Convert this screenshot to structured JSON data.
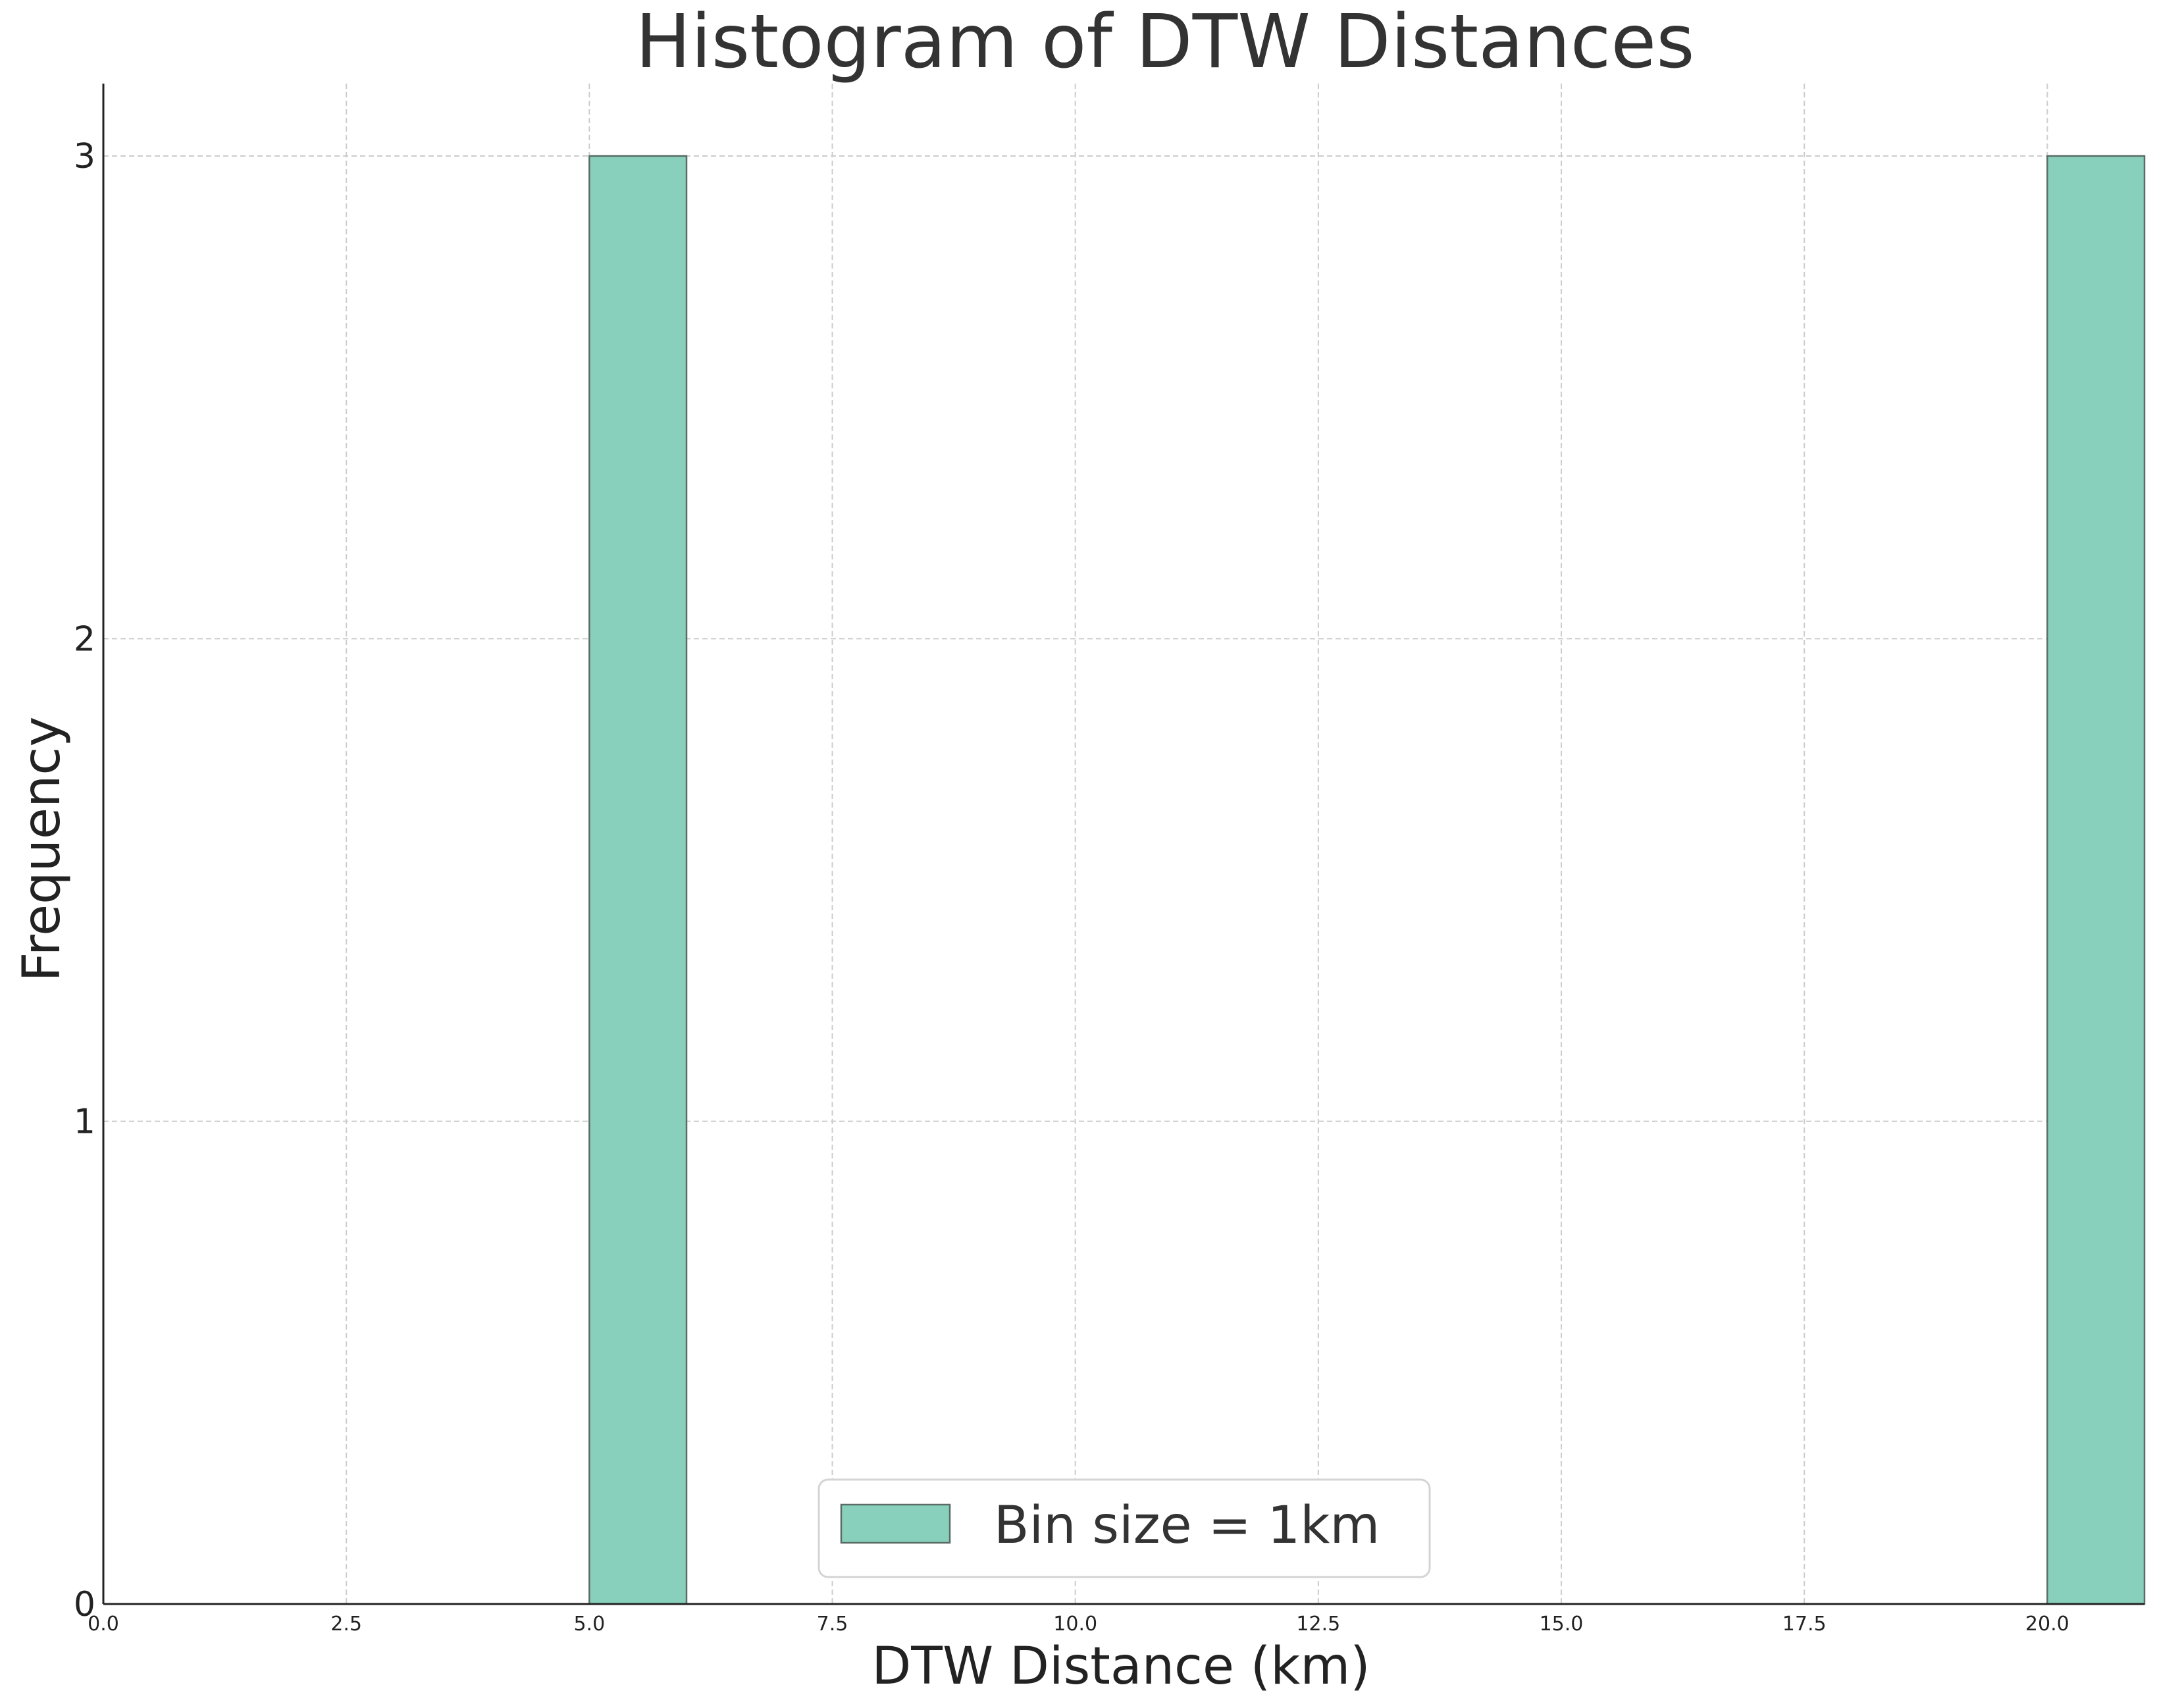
{
  "chart_data": {
    "type": "bar",
    "title": "Histogram of DTW Distances",
    "xlabel": "DTW Distance (km)",
    "ylabel": "Frequency",
    "xlim": [
      0,
      21
    ],
    "ylim": [
      0,
      3.15
    ],
    "x_ticks": [
      0,
      2.5,
      5,
      7.5,
      10,
      12.5,
      15,
      17.5,
      20
    ],
    "x_tick_labels": [
      "0.0",
      "2.5",
      "5.0",
      "7.5",
      "10.0",
      "12.5",
      "15.0",
      "17.5",
      "20.0"
    ],
    "y_ticks": [
      0,
      1,
      2,
      3
    ],
    "y_tick_labels": [
      "0",
      "1",
      "2",
      "3"
    ],
    "grid": true,
    "legend_position": "bottom-center",
    "series": [
      {
        "name": "Bin size = 1km",
        "color": "#88d0bc",
        "edge_color": "#5a6b66",
        "bins": [
          {
            "start": 5,
            "end": 6,
            "count": 3
          },
          {
            "start": 20,
            "end": 21,
            "count": 3
          }
        ]
      }
    ]
  }
}
